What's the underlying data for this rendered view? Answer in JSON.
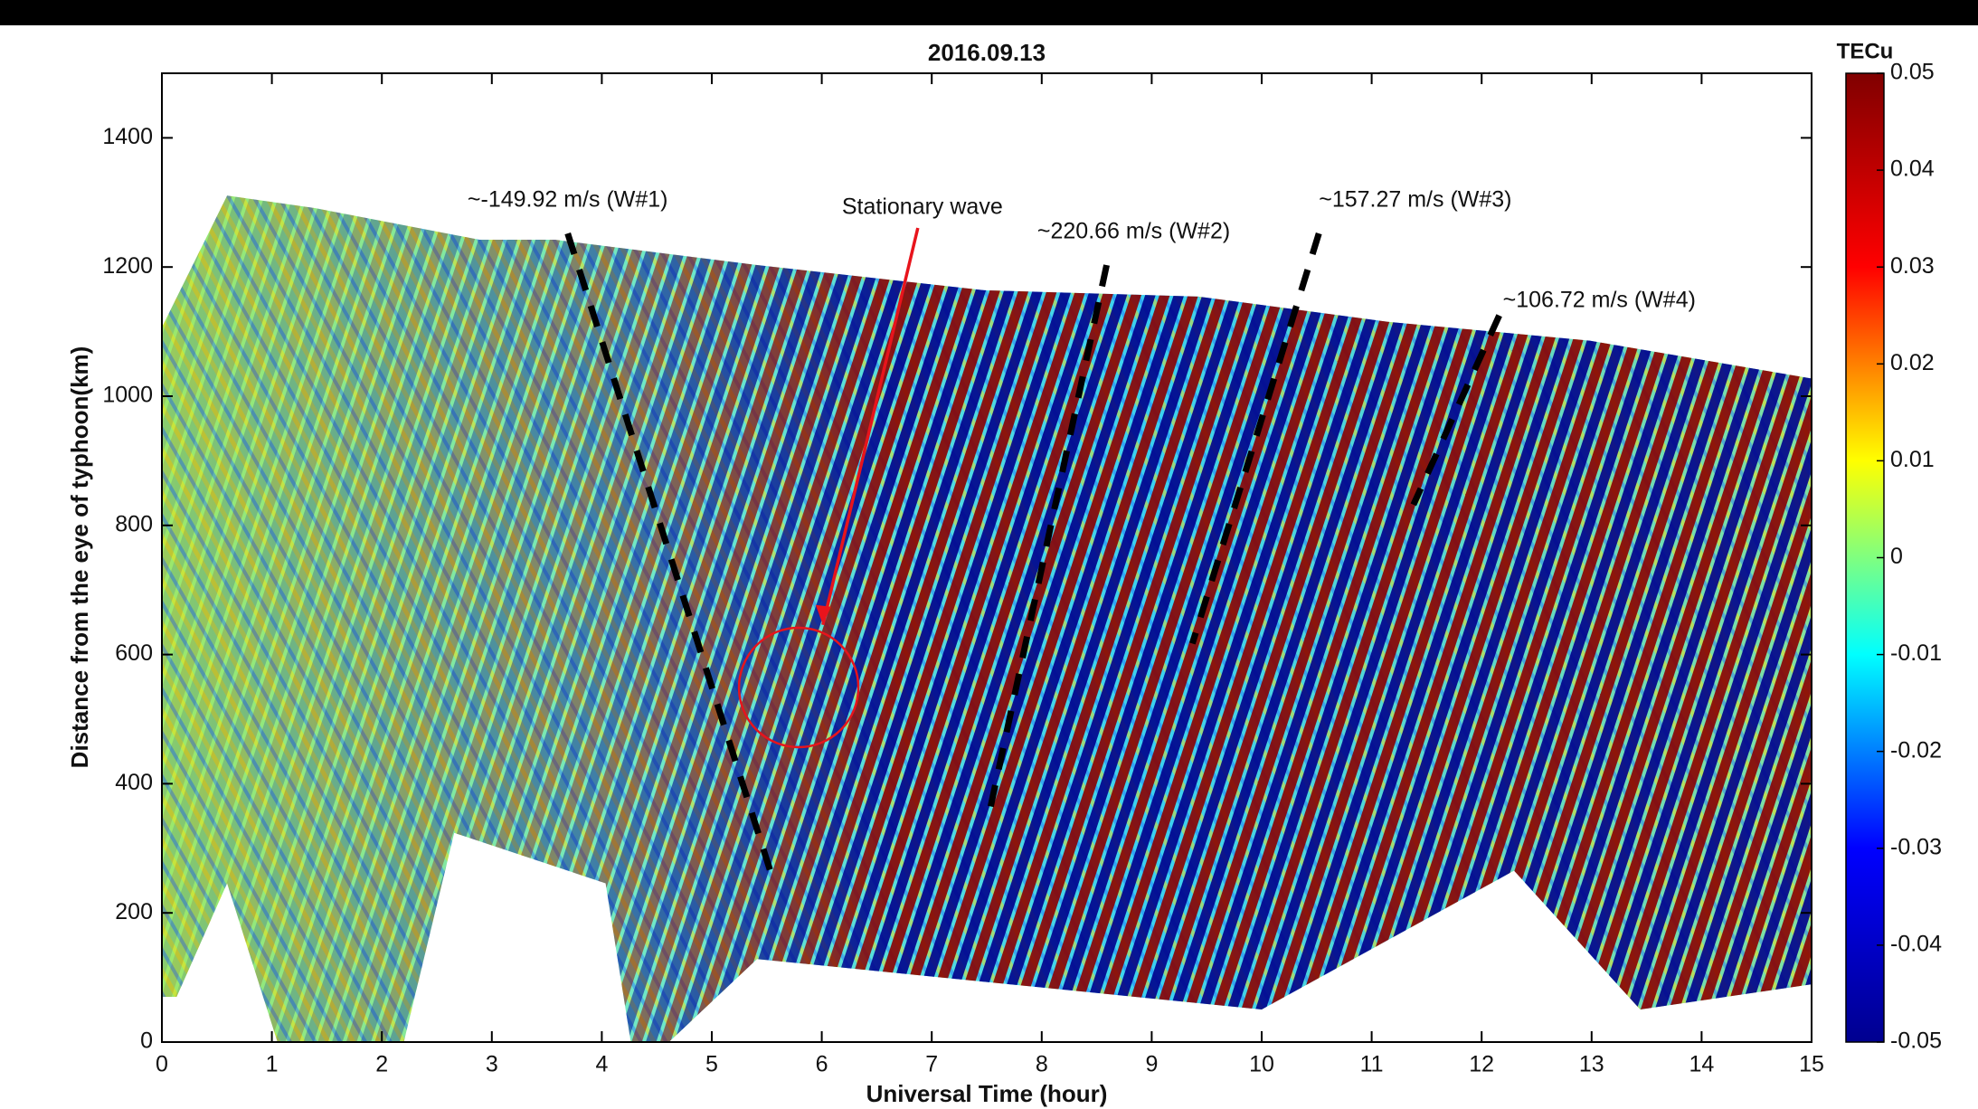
{
  "chart_data": {
    "type": "heatmap",
    "title": "2016.09.13",
    "x_label": "Universal Time (hour)",
    "y_label": "Distance from the eye of typhoon(km)",
    "xlim": [
      0,
      15
    ],
    "xticks": [
      0,
      1,
      2,
      3,
      4,
      5,
      6,
      7,
      8,
      9,
      10,
      11,
      12,
      13,
      14,
      15
    ],
    "ylim": [
      0,
      1500
    ],
    "yticks": [
      0,
      200,
      400,
      600,
      800,
      1000,
      1200,
      1400
    ],
    "colorbar": {
      "label": "TECu",
      "lim": [
        -0.05,
        0.05
      ],
      "ticks": [
        -0.05,
        -0.04,
        -0.03,
        -0.02,
        -0.01,
        0,
        0.01,
        0.02,
        0.03,
        0.04,
        0.05
      ],
      "colors": [
        "#00008f",
        "#0000ff",
        "#00ffff",
        "#ffff00",
        "#ff0000",
        "#800000"
      ]
    },
    "annotations": [
      {
        "text": "~-149.92 m/s (W#1)",
        "x": [
          3.69,
          5.53
        ],
        "y": [
          1252,
          266
        ],
        "color": "#000000"
      },
      {
        "text": "~220.66 m/s (W#2)",
        "x": [
          8.59,
          7.51
        ],
        "y": [
          1203,
          344
        ],
        "color": "#000000"
      },
      {
        "text": "~157.27 m/s (W#3)",
        "x": [
          10.52,
          9.37
        ],
        "y": [
          1252,
          617
        ],
        "color": "#000000"
      },
      {
        "text": "~106.72 m/s (W#4)",
        "x": [
          12.16,
          11.38
        ],
        "y": [
          1125,
          832
        ],
        "color": "#000000"
      }
    ],
    "stationary": {
      "text": "Stationary wave",
      "x": 6.01,
      "y": 646,
      "circle_x": 5.79,
      "circle_y": 549,
      "color": "#e8141c"
    }
  }
}
